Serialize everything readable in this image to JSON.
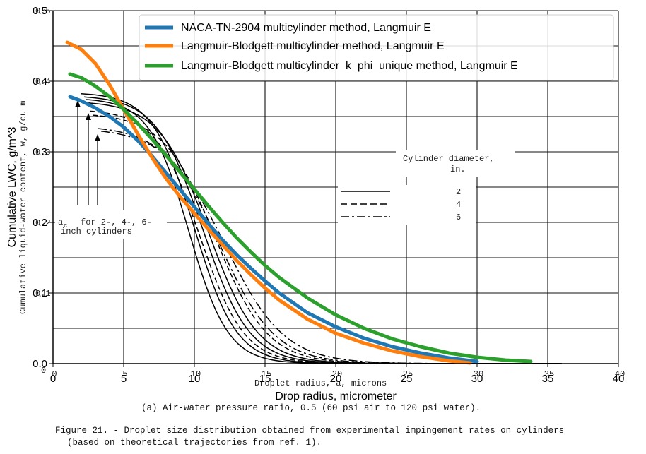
{
  "chart_data": {
    "type": "line",
    "xlabel": "Drop radius, micrometer",
    "ylabel": "Cumulative LWC, g/m^3",
    "xlim": [
      0,
      40
    ],
    "ylim": [
      0,
      0.5
    ],
    "x_ticks": [
      "0",
      "5",
      "10",
      "15",
      "20",
      "25",
      "30",
      "35",
      "40"
    ],
    "y_ticks": [
      "0.0",
      "0.1",
      "0.2",
      "0.3",
      "0.4",
      "0.5"
    ],
    "grid": true,
    "legend_position": "top-right",
    "series": [
      {
        "name": "NACA-TN-2904 multicylinder method, Langmuir E",
        "color": "#1f77b4",
        "x": [
          1.2,
          2,
          3,
          4,
          5,
          6,
          7,
          8,
          9,
          10,
          11,
          12,
          13,
          14,
          15,
          16,
          18,
          20,
          22,
          24,
          26,
          28,
          30
        ],
        "y": [
          0.378,
          0.372,
          0.362,
          0.35,
          0.335,
          0.316,
          0.294,
          0.27,
          0.246,
          0.222,
          0.198,
          0.175,
          0.154,
          0.135,
          0.117,
          0.1,
          0.072,
          0.052,
          0.036,
          0.024,
          0.015,
          0.008,
          0.003
        ]
      },
      {
        "name": "Langmuir-Blodgett multicylinder method, Langmuir E",
        "color": "#ff7f0e",
        "x": [
          1.0,
          2,
          3,
          4,
          5,
          6,
          7,
          8,
          9,
          10,
          11,
          12,
          13,
          14,
          15,
          16,
          18,
          20,
          22,
          24,
          26,
          28,
          29.5
        ],
        "y": [
          0.455,
          0.445,
          0.425,
          0.395,
          0.36,
          0.325,
          0.292,
          0.262,
          0.236,
          0.213,
          0.19,
          0.168,
          0.146,
          0.126,
          0.107,
          0.09,
          0.063,
          0.043,
          0.029,
          0.018,
          0.01,
          0.004,
          0.001
        ]
      },
      {
        "name": "Langmuir-Blodgett multicylinder_k_phi_unique method, Langmuir E",
        "color": "#2ca02c",
        "x": [
          1.2,
          2,
          3,
          4,
          5,
          6,
          7,
          8,
          9,
          10,
          11,
          12,
          13,
          14,
          15,
          16,
          18,
          20,
          22,
          24,
          26,
          28,
          30,
          32,
          33.8
        ],
        "y": [
          0.41,
          0.405,
          0.393,
          0.378,
          0.36,
          0.34,
          0.318,
          0.295,
          0.271,
          0.247,
          0.223,
          0.2,
          0.178,
          0.158,
          0.139,
          0.122,
          0.093,
          0.069,
          0.05,
          0.035,
          0.024,
          0.015,
          0.009,
          0.005,
          0.003
        ]
      }
    ]
  },
  "scan": {
    "old_axis_label": "Cumulative liquid-water content, w, g/cu m",
    "old_x_label": "Droplet radius, a, microns",
    "a_c_label": "a",
    "a_c_sub": "c",
    "a_c_text": "for 2-, 4-, 6-",
    "a_c_text2": "inch cylinders",
    "cyl_title1": "Cylinder diameter,",
    "cyl_title2": "in.",
    "cyl_values": [
      "2",
      "4",
      "6"
    ],
    "old_y_ticks": [
      "0.5",
      "0.4",
      "0.3",
      "0.2",
      "0.1",
      "0"
    ],
    "old_x_ticks": [
      "0",
      "5",
      "10",
      "15",
      "20",
      "25",
      "30",
      "35",
      "40"
    ],
    "subcaption": "(a) Air-water pressure ratio, 0.5 (60 psi air to 120 psi water).",
    "figure_caption1": "Figure 21. - Droplet size distribution obtained from experimental impingement rates on cylinders",
    "figure_caption2": "(based on theoretical trajectories from ref. 1)."
  }
}
